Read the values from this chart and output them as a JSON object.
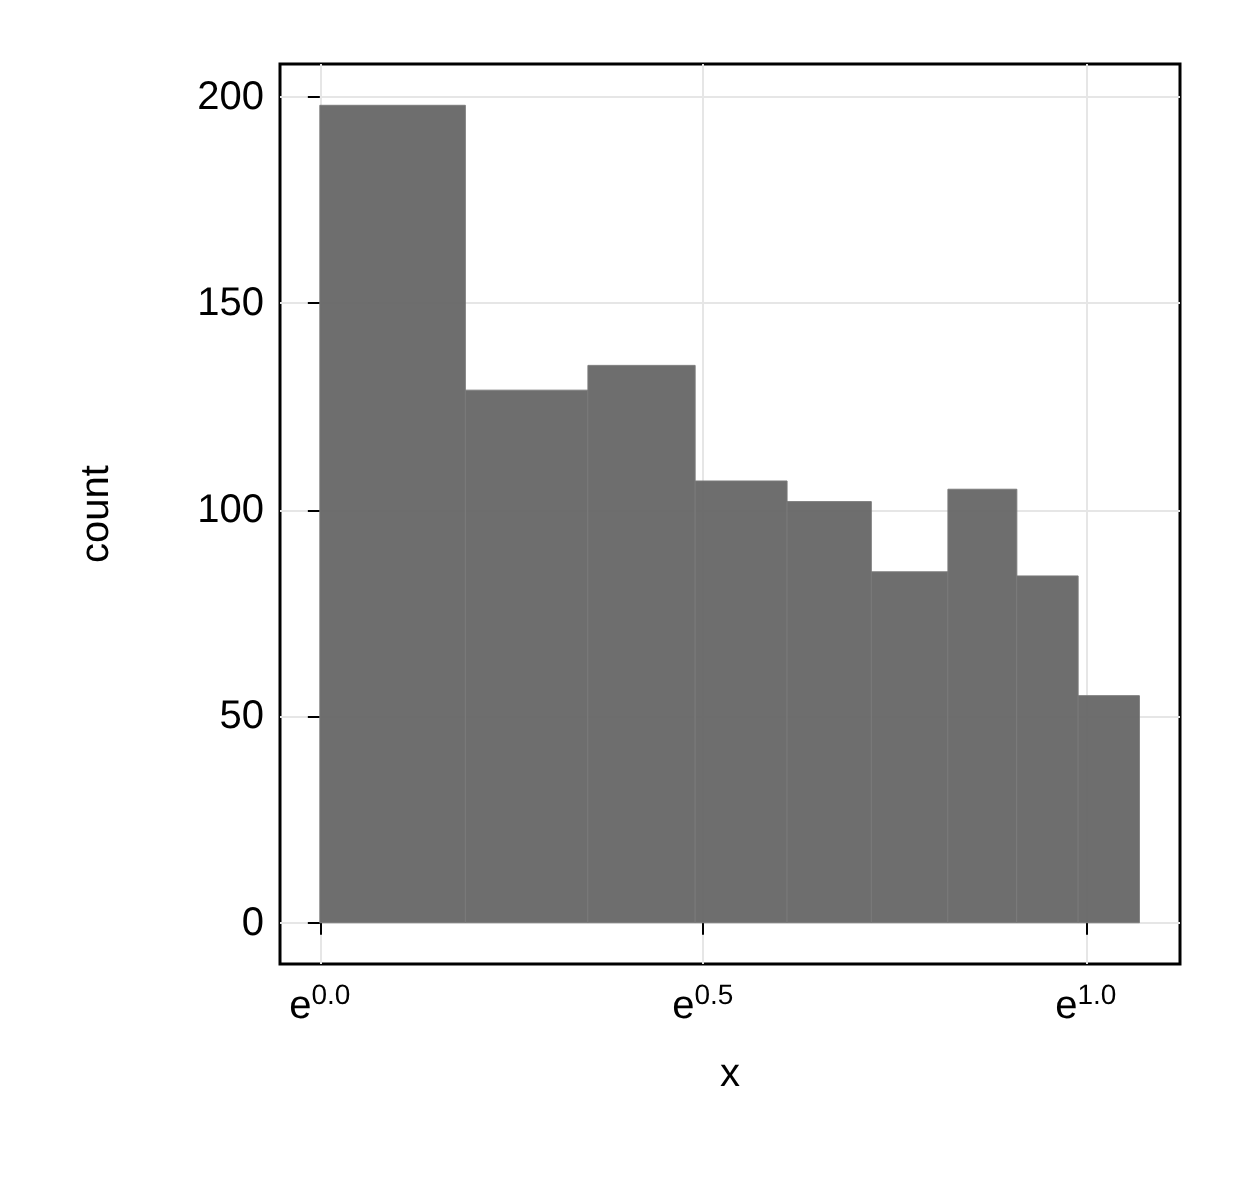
{
  "chart_data": {
    "type": "histogram",
    "xlabel": "x",
    "ylabel": "count",
    "color": "#666666",
    "grid": true,
    "bins": [
      0.0,
      0.19,
      0.35,
      0.49,
      0.61,
      0.72,
      0.82,
      0.91,
      0.99,
      1.07
    ],
    "values": [
      198,
      129,
      135,
      107,
      102,
      85,
      105,
      84,
      55
    ],
    "xlim": [
      -0.052,
      1.123
    ],
    "xticks": [
      {
        "value": 0,
        "label": "e$^{0.0}$"
      },
      {
        "value": 0.5,
        "label": "e$^{0.5}$"
      },
      {
        "value": 1,
        "label": "e$^{1.0}$"
      }
    ],
    "ylim": [
      -10,
      208
    ],
    "yticks": [
      0,
      50,
      100,
      150,
      200
    ]
  }
}
